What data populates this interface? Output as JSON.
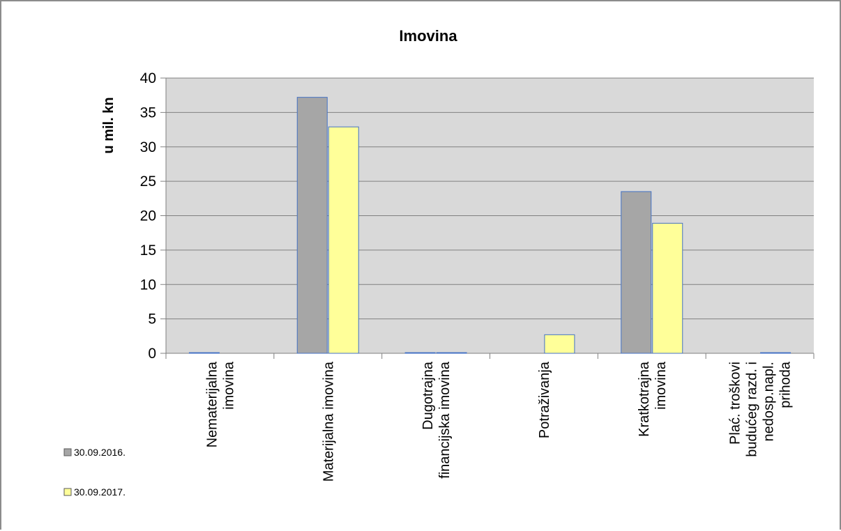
{
  "chart_data": {
    "type": "bar",
    "title": "Imovina",
    "xlabel": "",
    "ylabel": "u mil. kn",
    "ylim": [
      0,
      40
    ],
    "yticks": [
      0,
      5,
      10,
      15,
      20,
      25,
      30,
      35,
      40
    ],
    "grid": true,
    "legend_position": "left",
    "categories": [
      [
        "Nematerijalna",
        "imovina"
      ],
      [
        "Materijalna imovina"
      ],
      [
        "Dugotrajna",
        "financijska imovina"
      ],
      [
        "Potraživanja"
      ],
      [
        "Kratkotrajna",
        "imovina"
      ],
      [
        "Plać. troškovi",
        "budućeg razd. i",
        "nedosp.napl.",
        "prihoda"
      ]
    ],
    "series": [
      {
        "name": "30.09.2016.",
        "color": "#a6a6a6",
        "values": [
          0.1,
          37.2,
          0.1,
          0,
          23.5,
          0
        ]
      },
      {
        "name": "30.09.2017.",
        "color": "#ffff99",
        "values": [
          0,
          32.9,
          0.1,
          2.7,
          18.9,
          0.1
        ]
      }
    ],
    "colors": {
      "plot_area": "#d9d9d9",
      "bar_border": "#4472c4",
      "grid": "#808080"
    }
  }
}
